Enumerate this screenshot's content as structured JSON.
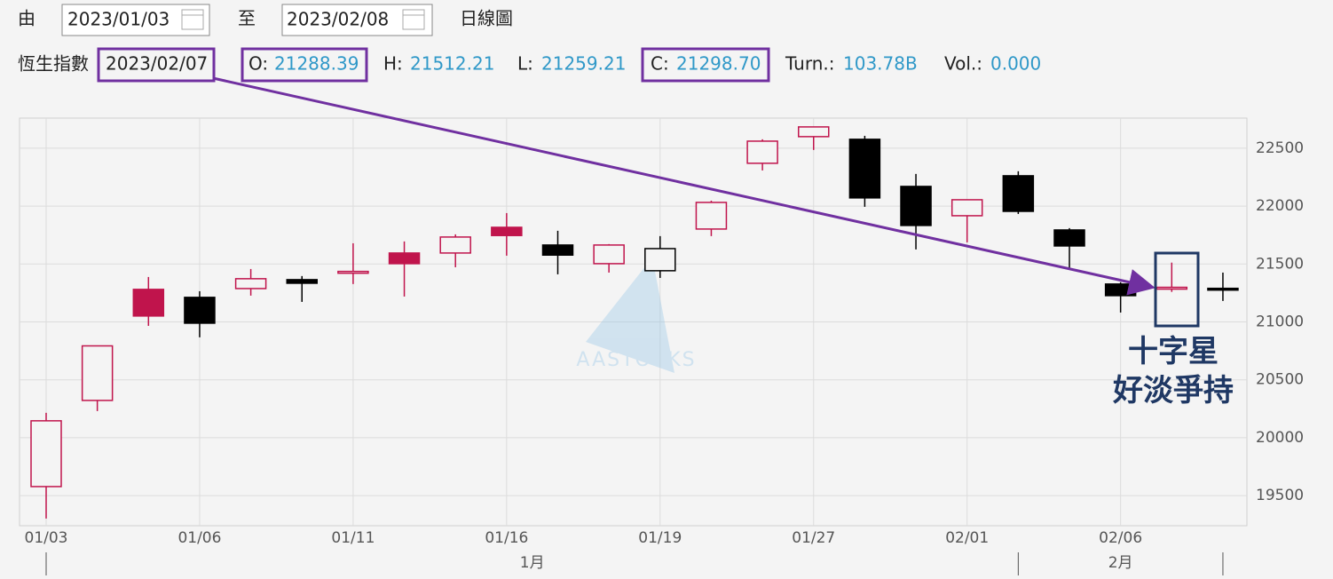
{
  "header": {
    "from_label": "由",
    "from_date": "2023/01/03",
    "to_label": "至",
    "to_date": "2023/02/08",
    "view": "日線圖"
  },
  "quote": {
    "name": "恆生指數",
    "date": "2023/02/07",
    "fields": [
      {
        "label": "O:",
        "value": "21288.39"
      },
      {
        "label": "H:",
        "value": "21512.21"
      },
      {
        "label": "L:",
        "value": "21259.21"
      },
      {
        "label": "C:",
        "value": "21298.70"
      },
      {
        "label": "Turn.:",
        "value": "103.78B"
      },
      {
        "label": "Vol.:",
        "value": "0.000"
      }
    ]
  },
  "chart_data": {
    "type": "candlestick",
    "categories": [
      "01/03",
      null,
      null,
      "01/06",
      null,
      null,
      "01/11",
      null,
      null,
      "01/16",
      null,
      null,
      "01/19",
      null,
      null,
      "01/27",
      null,
      null,
      "02/01",
      null,
      null,
      "02/06",
      null,
      null
    ],
    "open": [
      19578,
      20322,
      21281,
      21212,
      21288,
      21365,
      21430,
      21595,
      21595,
      21817,
      21664,
      21503,
      21442,
      21802,
      22370,
      22600,
      22577,
      22170,
      21917,
      22262,
      21794,
      21327,
      21288.39,
      21290
    ],
    "high": [
      20215,
      20793,
      21388,
      21265,
      21457,
      21396,
      21679,
      21695,
      21756,
      21940,
      21787,
      21672,
      21741,
      22047,
      22577,
      22684,
      22607,
      22278,
      22055,
      22301,
      21810,
      21342,
      21512.21,
      21426
    ],
    "low": [
      19302,
      20230,
      20966,
      20867,
      21227,
      21173,
      21327,
      21219,
      21472,
      21572,
      21411,
      21426,
      21380,
      21741,
      22308,
      22485,
      21994,
      21626,
      21687,
      21932,
      21465,
      21081,
      21259.21,
      21181
    ],
    "close": [
      20146,
      20793,
      21051,
      20989,
      21373,
      21334,
      21436,
      21503,
      21733,
      21746,
      21577,
      21664,
      21633,
      22032,
      22561,
      22684,
      22071,
      21833,
      22055,
      21955,
      21656,
      21227,
      21298.7,
      21283
    ],
    "up_color": "#c0144c",
    "down_color": "#000000",
    "ylim": [
      19240,
      22760
    ],
    "yticks": [
      19500,
      20000,
      20500,
      21000,
      21500,
      22000,
      22500
    ],
    "grid": true,
    "months": [
      {
        "label": "1月",
        "first": 0
      },
      {
        "label": "2月",
        "first": 19
      }
    ],
    "watermark": "AASTOCKS",
    "annotation": [
      "十字星",
      "好淡爭持"
    ]
  }
}
